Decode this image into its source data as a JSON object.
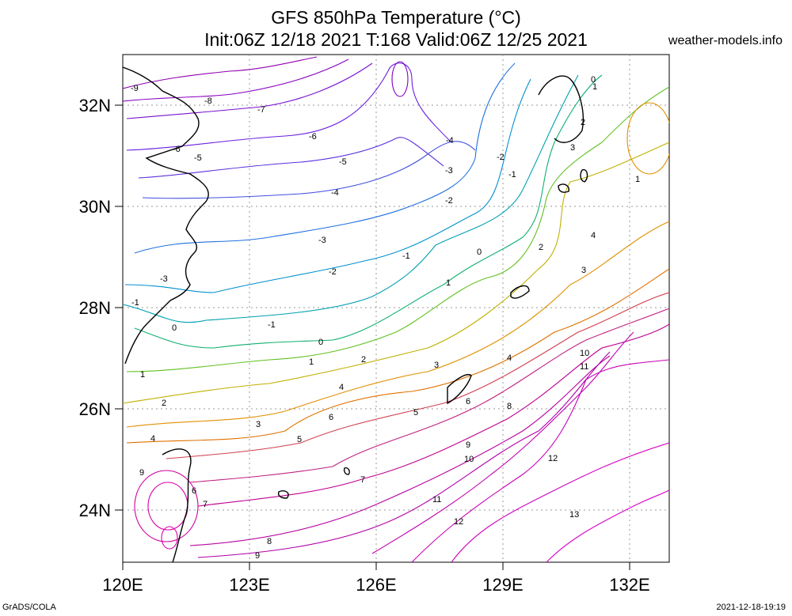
{
  "title_line1": "GFS 850hPa Temperature (°C)",
  "title_line2": "Init:06Z 12/18 2021 T:168 Valid:06Z 12/25 2021",
  "site": "weather-models.info",
  "footer_left": "GrADS/COLA",
  "footer_right": "2021-12-18-19:19",
  "lat_ticks": [
    "32N",
    "30N",
    "28N",
    "26N",
    "24N"
  ],
  "lon_ticks": [
    "120E",
    "123E",
    "126E",
    "129E",
    "132E"
  ],
  "contour_labels": [
    "-9",
    "-8",
    "-7",
    "-6",
    "-6",
    "-5",
    "-5",
    "-4",
    "-4",
    "-3",
    "-3",
    "-3",
    "-2",
    "-2",
    "-2",
    "-1",
    "-1",
    "-1",
    "-1",
    "0",
    "0",
    "0",
    "0",
    "1",
    "1",
    "1",
    "1",
    "1",
    "2",
    "2",
    "2",
    "2",
    "3",
    "3",
    "3",
    "3",
    "4",
    "4",
    "4",
    "4",
    "5",
    "5",
    "6",
    "6",
    "6",
    "7",
    "7",
    "8",
    "8",
    "9",
    "9",
    "9",
    "10",
    "10",
    "11",
    "11",
    "12",
    "12",
    "13"
  ],
  "colors": {
    "very_cold": "#8000c0",
    "cold": "#6020e0",
    "cool": "#0090d0",
    "zero": "#10b080",
    "mild": "#60c000",
    "warm": "#e0a000",
    "warmer": "#e06000",
    "hot": "#c00080",
    "hottest": "#d000a0"
  }
}
